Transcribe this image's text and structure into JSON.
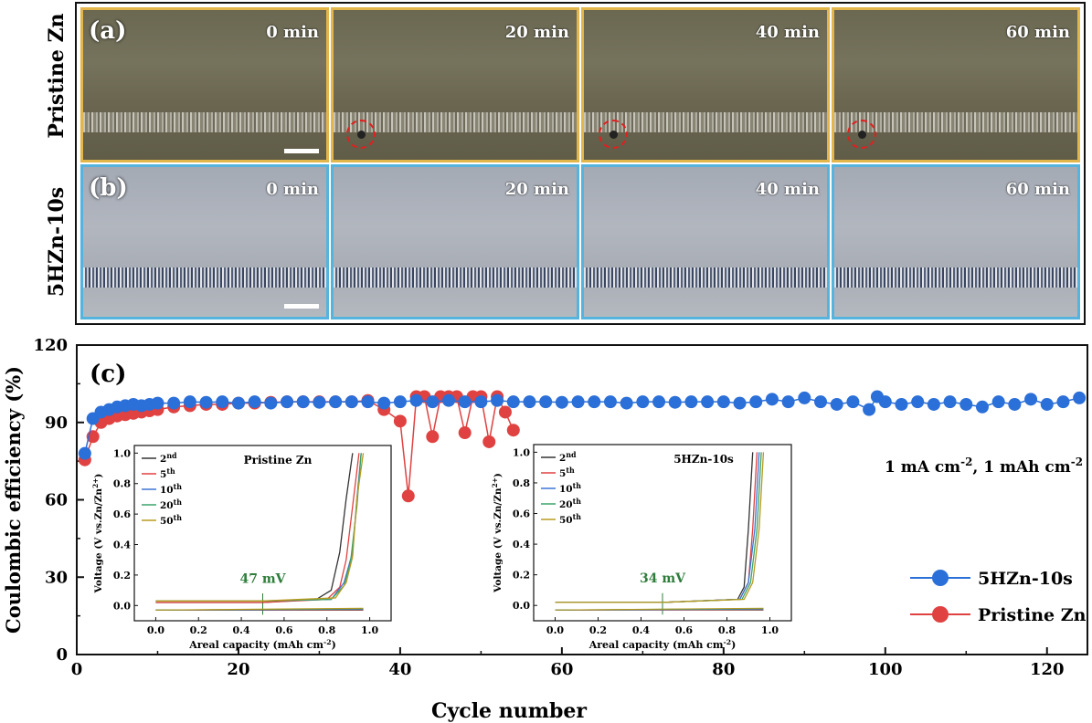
{
  "micrographs": {
    "row_a_label": "Pristine Zn",
    "row_b_label": "5HZn-10s",
    "panel_a_tag": "(a)",
    "panel_b_tag": "(b)",
    "times": [
      "0 min",
      "20 min",
      "40 min",
      "60 min"
    ],
    "frame_color_a": "#e2b64a",
    "frame_color_b": "#55b4de",
    "defect_circle_color": "#e02020"
  },
  "chart_data": [
    {
      "type": "scatter",
      "panel_tag": "(c)",
      "title": "",
      "xlabel": "Cycle number",
      "ylabel": "Coulombic efficiency (%)",
      "xlim": [
        0,
        125
      ],
      "ylim": [
        0,
        120
      ],
      "xticks": [
        0,
        20,
        40,
        60,
        80,
        100,
        120
      ],
      "yticks": [
        0,
        30,
        60,
        90,
        120
      ],
      "annotation": "1 mA cm-2, 1 mAh cm-2",
      "series": [
        {
          "name": "5HZn-10s",
          "color": "#2b6fd8",
          "x": [
            1,
            2,
            3,
            4,
            5,
            6,
            7,
            8,
            9,
            10,
            12,
            14,
            16,
            18,
            20,
            22,
            24,
            26,
            28,
            30,
            32,
            34,
            36,
            38,
            40,
            42,
            44,
            46,
            48,
            50,
            52,
            54,
            56,
            58,
            60,
            62,
            64,
            66,
            68,
            70,
            72,
            74,
            76,
            78,
            80,
            82,
            84,
            86,
            88,
            90,
            92,
            94,
            96,
            98,
            99,
            100,
            102,
            104,
            106,
            108,
            110,
            112,
            114,
            116,
            118,
            120,
            122,
            124
          ],
          "y": [
            78,
            91.5,
            94,
            95,
            96,
            96.5,
            97,
            96.5,
            97,
            97.5,
            97.5,
            98,
            97.8,
            98,
            97.5,
            98,
            97.5,
            98,
            98,
            97.8,
            98,
            98,
            98,
            97.5,
            98,
            98.5,
            98,
            98.5,
            98,
            98,
            98.5,
            98,
            98,
            98,
            97.8,
            98,
            98,
            98,
            97.5,
            98,
            98,
            97.8,
            98,
            98,
            98,
            97.5,
            98,
            99,
            98,
            99.5,
            98,
            97,
            98,
            95,
            100,
            98,
            97,
            98,
            97,
            98,
            97,
            96,
            98,
            97,
            99,
            97,
            98,
            99.5
          ]
        },
        {
          "name": "Pristine Zn",
          "color": "#e04141",
          "x": [
            1,
            2,
            3,
            4,
            5,
            6,
            7,
            8,
            9,
            10,
            12,
            14,
            16,
            18,
            20,
            22,
            24,
            26,
            28,
            30,
            32,
            34,
            36,
            38,
            40,
            41,
            42,
            43,
            44,
            45,
            46,
            47,
            48,
            49,
            50,
            51,
            52,
            53,
            54
          ],
          "y": [
            75.5,
            84.5,
            90,
            91.5,
            92.5,
            93,
            93.5,
            94,
            94.5,
            95,
            96,
            96.5,
            97,
            97,
            97.5,
            97.5,
            97.8,
            98,
            98,
            98,
            98,
            98,
            98.5,
            95,
            90.5,
            61.5,
            100,
            100,
            84.5,
            100,
            100,
            100,
            86,
            100,
            100,
            82.5,
            100,
            94,
            87
          ]
        }
      ]
    },
    {
      "type": "line",
      "title": "Pristine Zn",
      "xlabel": "Areal capacity (mAh cm-2)",
      "ylabel": "Voltage (V vs.Zn/Zn2+)",
      "xlim": [
        -0.1,
        1.1
      ],
      "ylim": [
        -0.1,
        1.05
      ],
      "xticks": [
        0.0,
        0.2,
        0.4,
        0.6,
        0.8,
        1.0
      ],
      "yticks": [
        0.0,
        0.2,
        0.4,
        0.6,
        0.8,
        1.0
      ],
      "annotation": "47 mV",
      "series": [
        {
          "name": "2nd",
          "color": "#333333",
          "x": [
            0,
            0.5,
            0.75,
            0.82,
            0.86,
            0.89,
            0.92
          ],
          "y": [
            0.02,
            0.02,
            0.04,
            0.1,
            0.35,
            0.7,
            1.0
          ]
        },
        {
          "name": "5th",
          "color": "#e04141",
          "x": [
            0,
            0.5,
            0.8,
            0.86,
            0.89,
            0.92,
            0.95
          ],
          "y": [
            0.02,
            0.02,
            0.04,
            0.12,
            0.3,
            0.65,
            1.0
          ]
        },
        {
          "name": "10th",
          "color": "#3d74d6",
          "x": [
            0,
            0.5,
            0.82,
            0.88,
            0.92,
            0.94,
            0.96
          ],
          "y": [
            0.03,
            0.03,
            0.04,
            0.15,
            0.35,
            0.7,
            1.0
          ]
        },
        {
          "name": "20th",
          "color": "#3aa36b",
          "x": [
            0,
            0.5,
            0.82,
            0.88,
            0.91,
            0.94,
            0.96
          ],
          "y": [
            0.03,
            0.03,
            0.04,
            0.13,
            0.28,
            0.65,
            1.0
          ]
        },
        {
          "name": "50th",
          "color": "#b89a1e",
          "x": [
            0,
            0.5,
            0.84,
            0.89,
            0.92,
            0.94,
            0.97
          ],
          "y": [
            0.03,
            0.03,
            0.05,
            0.15,
            0.32,
            0.7,
            1.0
          ]
        }
      ]
    },
    {
      "type": "line",
      "title": "5HZn-10s",
      "xlabel": "Areal capacity (mAh cm-2)",
      "ylabel": "Voltage (V vs.Zn/Zn2+)",
      "xlim": [
        -0.1,
        1.1
      ],
      "ylim": [
        -0.1,
        1.05
      ],
      "xticks": [
        0.0,
        0.2,
        0.4,
        0.6,
        0.8,
        1.0
      ],
      "yticks": [
        0.0,
        0.2,
        0.4,
        0.6,
        0.8,
        1.0
      ],
      "annotation": "34 mV",
      "series": [
        {
          "name": "2nd",
          "color": "#333333",
          "x": [
            0,
            0.5,
            0.85,
            0.88,
            0.9,
            0.92
          ],
          "y": [
            0.02,
            0.02,
            0.04,
            0.12,
            0.5,
            1.0
          ]
        },
        {
          "name": "5th",
          "color": "#e04141",
          "x": [
            0,
            0.5,
            0.86,
            0.9,
            0.92,
            0.94
          ],
          "y": [
            0.02,
            0.02,
            0.04,
            0.15,
            0.5,
            1.0
          ]
        },
        {
          "name": "10th",
          "color": "#3d74d6",
          "x": [
            0,
            0.5,
            0.86,
            0.9,
            0.93,
            0.95
          ],
          "y": [
            0.02,
            0.02,
            0.04,
            0.15,
            0.5,
            1.0
          ]
        },
        {
          "name": "20th",
          "color": "#3aa36b",
          "x": [
            0,
            0.5,
            0.87,
            0.91,
            0.94,
            0.96
          ],
          "y": [
            0.02,
            0.02,
            0.04,
            0.15,
            0.5,
            1.0
          ]
        },
        {
          "name": "50th",
          "color": "#b89a1e",
          "x": [
            0,
            0.5,
            0.88,
            0.92,
            0.95,
            0.97
          ],
          "y": [
            0.02,
            0.02,
            0.04,
            0.15,
            0.5,
            1.0
          ]
        }
      ]
    }
  ]
}
